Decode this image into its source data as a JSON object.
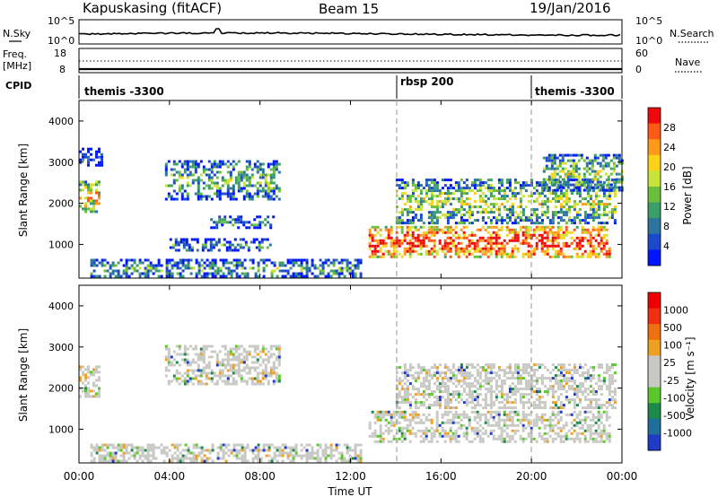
{
  "header": {
    "station": "Kapuskasing (fitACF)",
    "beam": "Beam 15",
    "date": "19/Jan/2016"
  },
  "noise_panel": {
    "left_label": "N.Sky",
    "left_ticks": [
      "10^5",
      "10^0"
    ],
    "right_ticks": [
      "10^5",
      "10^0"
    ],
    "right_label": "N.Search"
  },
  "freq_panel": {
    "left_label_1": "Freq.",
    "left_label_2": "[MHz]",
    "left_ticks": [
      "18",
      "8"
    ],
    "right_ticks": [
      "60",
      "0"
    ],
    "right_label": "Nave"
  },
  "cpid_panel": {
    "label": "CPID",
    "segments": [
      {
        "label": "themis -3300",
        "start_hour": 0
      },
      {
        "label": "rbsp 200",
        "start_hour": 14
      },
      {
        "label": "themis -3300",
        "start_hour": 19.9
      }
    ]
  },
  "chart_data": [
    {
      "type": "heatmap",
      "title": "",
      "ylabel": "Slant Range [km]",
      "xlabel": "",
      "xlim_hours": [
        0,
        24
      ],
      "ylim": [
        180,
        4500
      ],
      "yticks": [
        1000,
        2000,
        3000,
        4000
      ],
      "colorbar": {
        "label": "Power [dB]",
        "ticks": [
          "28",
          "24",
          "20",
          "16",
          "12",
          "8",
          "4"
        ],
        "colors": [
          "#0016ff",
          "#1c49c9",
          "#2c75a0",
          "#3b9e68",
          "#6cbf3a",
          "#c8e43a",
          "#ffd21a",
          "#ff9a1a",
          "#ff5a14",
          "#ee0a0a"
        ]
      },
      "echo_regions": [
        {
          "from_h": 0.0,
          "to_h": 0.9,
          "r_low": 1800,
          "r_high": 2550,
          "intensity": 0.7
        },
        {
          "from_h": 0.0,
          "to_h": 1.0,
          "r_low": 2950,
          "r_high": 3350,
          "intensity": 0.2
        },
        {
          "from_h": 3.8,
          "to_h": 8.8,
          "r_low": 2100,
          "r_high": 3050,
          "intensity": 0.45
        },
        {
          "from_h": 5.8,
          "to_h": 8.6,
          "r_low": 1400,
          "r_high": 1700,
          "intensity": 0.35
        },
        {
          "from_h": 4.0,
          "to_h": 8.5,
          "r_low": 850,
          "r_high": 1150,
          "intensity": 0.35
        },
        {
          "from_h": 0.5,
          "to_h": 12.5,
          "r_low": 200,
          "r_high": 650,
          "intensity": 0.4
        },
        {
          "from_h": 12.8,
          "to_h": 23.5,
          "r_low": 700,
          "r_high": 1450,
          "intensity": 0.95
        },
        {
          "from_h": 14.0,
          "to_h": 23.7,
          "r_low": 1500,
          "r_high": 2600,
          "intensity": 0.55
        },
        {
          "from_h": 20.5,
          "to_h": 24.0,
          "r_low": 2300,
          "r_high": 3200,
          "intensity": 0.5
        }
      ]
    },
    {
      "type": "heatmap",
      "title": "",
      "ylabel": "Slant Range [km]",
      "xlabel": "Time UT",
      "xlim_hours": [
        0,
        24
      ],
      "ylim": [
        180,
        4500
      ],
      "yticks": [
        1000,
        2000,
        3000,
        4000
      ],
      "xticks": [
        "00:00",
        "04:00",
        "08:00",
        "12:00",
        "16:00",
        "20:00",
        "00:00"
      ],
      "colorbar": {
        "label": "Velocity [m s⁻¹]",
        "ticks": [
          "1000",
          "500",
          "100",
          "25",
          "-25",
          "-100",
          "-500",
          "-1000"
        ],
        "colors": [
          "#1f3cc8",
          "#1f6e9c",
          "#1b8a4a",
          "#5ac82a",
          "#c8c8c4",
          "#c8c8c4",
          "#f0a020",
          "#ee7010",
          "#ee3010",
          "#ee0000"
        ]
      },
      "echo_regions": [
        {
          "from_h": 0.0,
          "to_h": 0.9,
          "r_low": 1800,
          "r_high": 2550,
          "intensity": 0.5
        },
        {
          "from_h": 3.8,
          "to_h": 8.8,
          "r_low": 2100,
          "r_high": 3050,
          "intensity": 0.5
        },
        {
          "from_h": 12.8,
          "to_h": 23.5,
          "r_low": 700,
          "r_high": 1450,
          "intensity": 0.5
        },
        {
          "from_h": 14.0,
          "to_h": 23.7,
          "r_low": 1500,
          "r_high": 2600,
          "intensity": 0.5
        },
        {
          "from_h": 0.5,
          "to_h": 12.5,
          "r_low": 200,
          "r_high": 650,
          "intensity": 0.4
        }
      ]
    }
  ]
}
